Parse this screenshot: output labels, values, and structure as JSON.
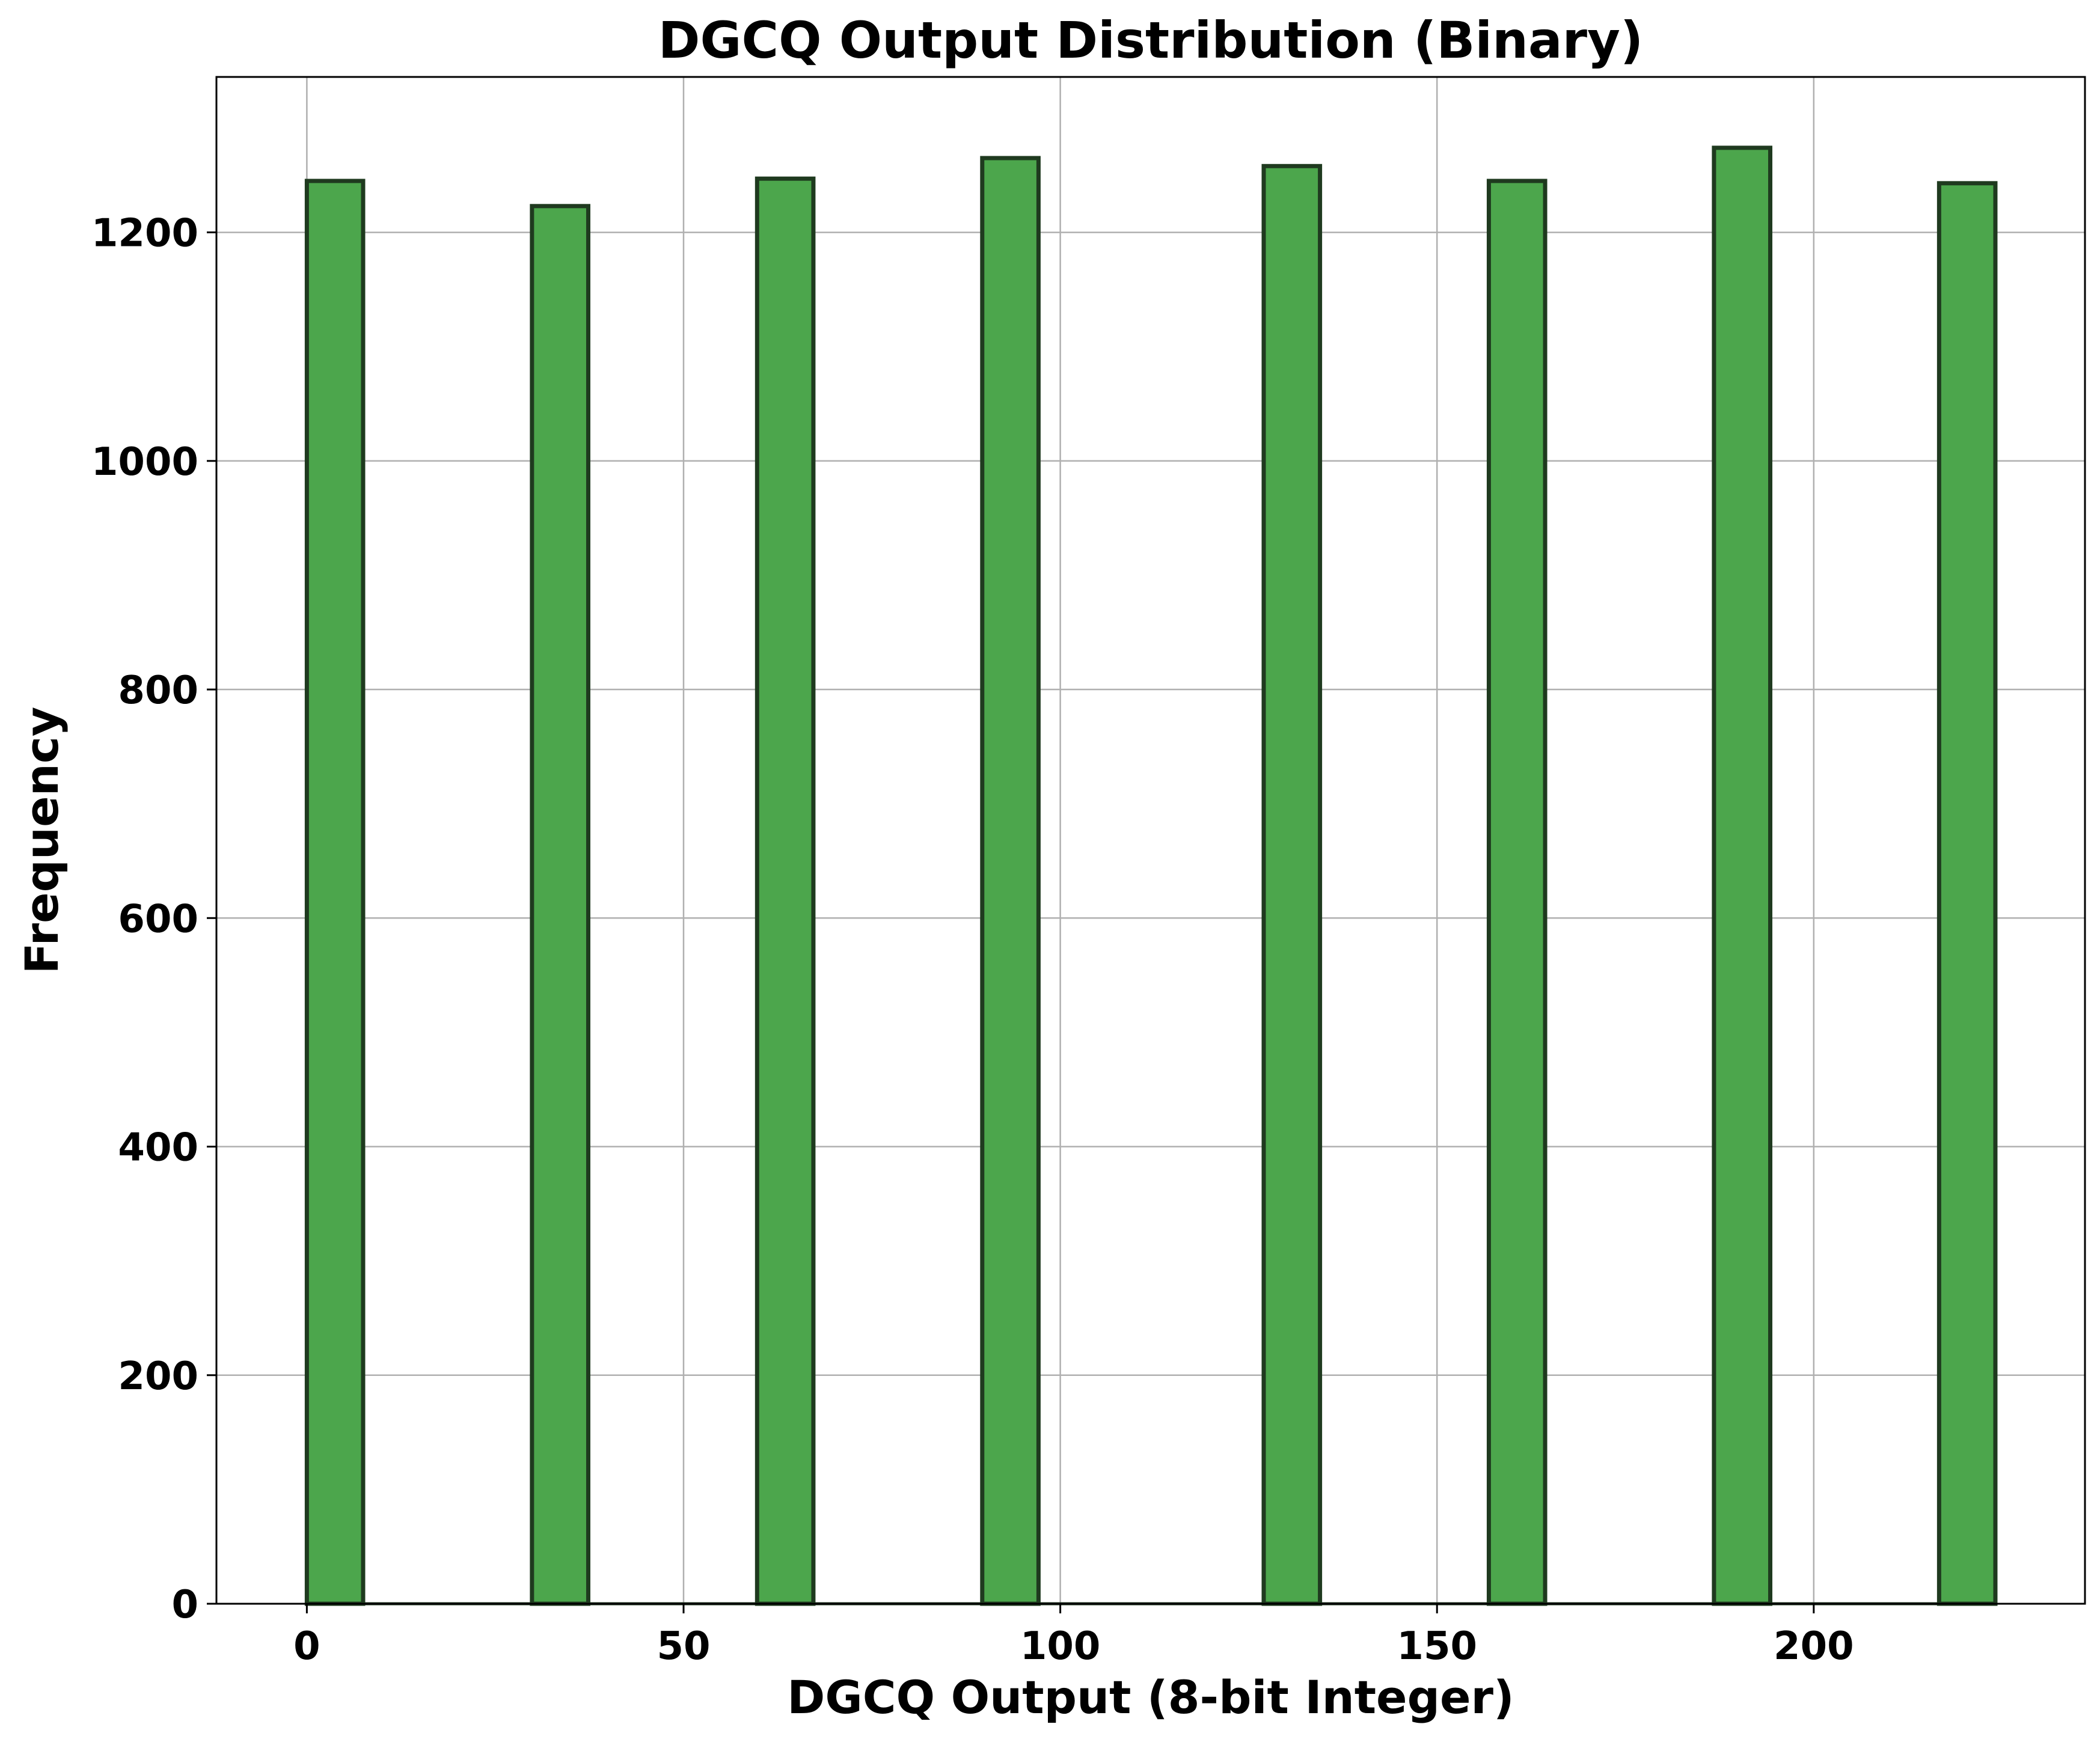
{
  "chart_data": {
    "type": "bar",
    "title": "DGCQ Output Distribution (Binary)",
    "xlabel": "DGCQ Output (8-bit Integer)",
    "ylabel": "Frequency",
    "xlim": [
      -12,
      236
    ],
    "ylim": [
      0,
      1336
    ],
    "x_ticks": [
      0,
      50,
      100,
      150,
      200
    ],
    "y_ticks": [
      0,
      200,
      400,
      600,
      800,
      1000,
      1200
    ],
    "grid": true,
    "bin_width": 7.47,
    "bins": [
      {
        "start": 0,
        "value": 1245
      },
      {
        "start": 29.88,
        "value": 1223
      },
      {
        "start": 59.76,
        "value": 1247
      },
      {
        "start": 89.64,
        "value": 1265
      },
      {
        "start": 127.0,
        "value": 1258
      },
      {
        "start": 156.88,
        "value": 1245
      },
      {
        "start": 186.76,
        "value": 1274
      },
      {
        "start": 216.64,
        "value": 1243
      }
    ],
    "colors": {
      "bar_fill": "#4ca64c",
      "bar_edge": "#1f3a1f",
      "grid": "#b0b0b0"
    }
  }
}
